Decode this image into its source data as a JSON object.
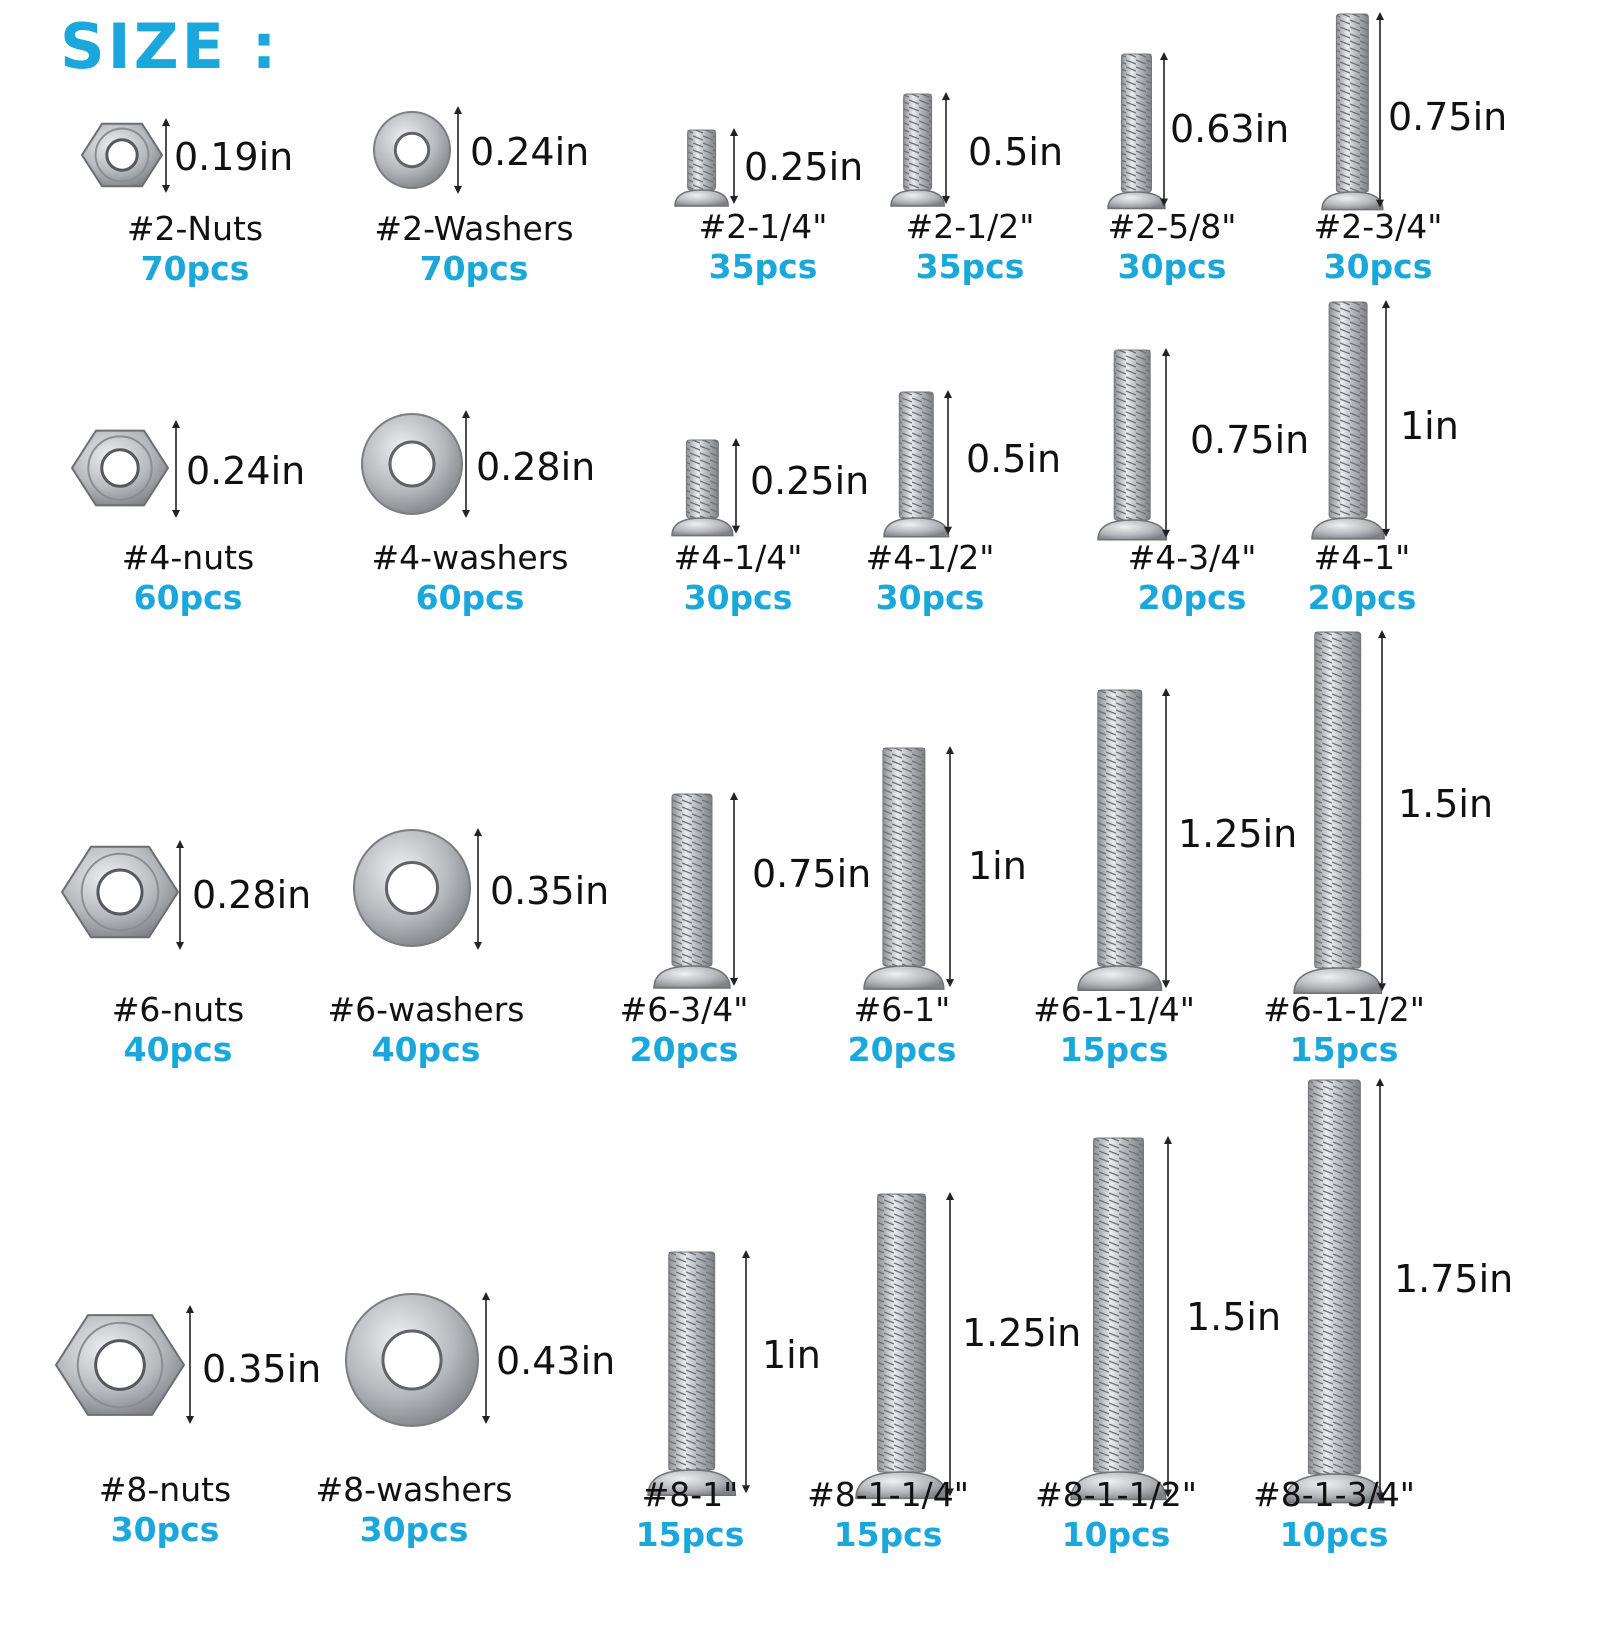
{
  "title": "SIZE :",
  "accent_color": "#1aa7dc",
  "rows": [
    {
      "nut": {
        "label": "#2-Nuts",
        "count": "70pcs",
        "dim": "0.19in"
      },
      "washer": {
        "label": "#2-Washers",
        "count": "70pcs",
        "dim": "0.24in"
      },
      "screws": [
        {
          "label": "#2-1/4\"",
          "count": "35pcs",
          "dim": "0.25in"
        },
        {
          "label": "#2-1/2\"",
          "count": "35pcs",
          "dim": "0.5in"
        },
        {
          "label": "#2-5/8\"",
          "count": "30pcs",
          "dim": "0.63in"
        },
        {
          "label": "#2-3/4\"",
          "count": "30pcs",
          "dim": "0.75in"
        }
      ]
    },
    {
      "nut": {
        "label": "#4-nuts",
        "count": "60pcs",
        "dim": "0.24in"
      },
      "washer": {
        "label": "#4-washers",
        "count": "60pcs",
        "dim": "0.28in"
      },
      "screws": [
        {
          "label": "#4-1/4\"",
          "count": "30pcs",
          "dim": "0.25in"
        },
        {
          "label": "#4-1/2\"",
          "count": "30pcs",
          "dim": "0.5in"
        },
        {
          "label": "#4-3/4\"",
          "count": "20pcs",
          "dim": "0.75in"
        },
        {
          "label": "#4-1\"",
          "count": "20pcs",
          "dim": "1in"
        }
      ]
    },
    {
      "nut": {
        "label": "#6-nuts",
        "count": "40pcs",
        "dim": "0.28in"
      },
      "washer": {
        "label": "#6-washers",
        "count": "40pcs",
        "dim": "0.35in"
      },
      "screws": [
        {
          "label": "#6-3/4\"",
          "count": "20pcs",
          "dim": "0.75in"
        },
        {
          "label": "#6-1\"",
          "count": "20pcs",
          "dim": "1in"
        },
        {
          "label": "#6-1-1/4\"",
          "count": "15pcs",
          "dim": "1.25in"
        },
        {
          "label": "#6-1-1/2\"",
          "count": "15pcs",
          "dim": "1.5in"
        }
      ]
    },
    {
      "nut": {
        "label": "#8-nuts",
        "count": "30pcs",
        "dim": "0.35in"
      },
      "washer": {
        "label": "#8-washers",
        "count": "30pcs",
        "dim": "0.43in"
      },
      "screws": [
        {
          "label": "#8-1\"",
          "count": "15pcs",
          "dim": "1in"
        },
        {
          "label": "#8-1-1/4\"",
          "count": "15pcs",
          "dim": "1.25in"
        },
        {
          "label": "#8-1-1/2\"",
          "count": "10pcs",
          "dim": "1.5in"
        },
        {
          "label": "#8-1-3/4\"",
          "count": "10pcs",
          "dim": "1.75in"
        }
      ]
    }
  ]
}
